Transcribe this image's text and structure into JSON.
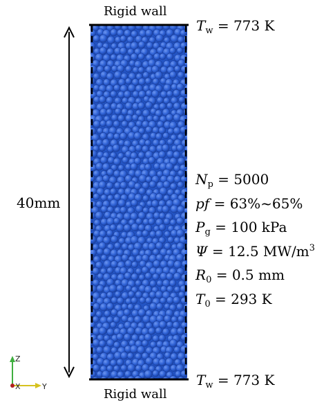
{
  "top_wall_label": "Rigid wall",
  "bottom_wall_label": "Rigid wall",
  "height_label": "40mm",
  "wall_temp_top": {
    "symbol": "T",
    "sub": "w",
    "value": " = 773 K"
  },
  "wall_temp_bottom": {
    "symbol": "T",
    "sub": "w",
    "value": " = 773 K"
  },
  "params": [
    {
      "symbol": "N",
      "sub": "p",
      "value": " = 5000"
    },
    {
      "symbol": "pf",
      "sub": "",
      "value": " = 63%~65%"
    },
    {
      "symbol": "P",
      "sub": "g",
      "value": " = 100 kPa"
    },
    {
      "symbol": "Ψ",
      "sub": "",
      "value": " = 12.5 MW/m",
      "sup": "3"
    },
    {
      "symbol": "R",
      "sub": "0",
      "value": " = 0.5 mm"
    },
    {
      "symbol": "T",
      "sub": "0",
      "value": " = 293 K"
    }
  ],
  "axes": {
    "z": "Z",
    "x": "X",
    "y": "Y"
  },
  "colors": {
    "pebble": "#2f62d6",
    "pebble_dark": "#1d44a8",
    "pebble_light": "#5a86ea"
  }
}
